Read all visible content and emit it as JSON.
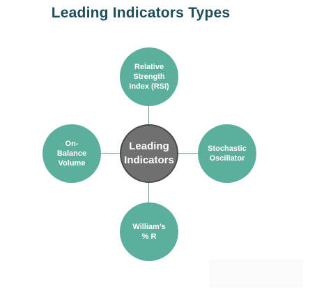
{
  "title": "Leading Indicators Types",
  "center": {
    "label": "Leading\nIndicators"
  },
  "nodes": {
    "top": "Relative\nStrength\nIndex (RSI)",
    "right": "Stochastic\nOscillator",
    "bottom": "William’s\n% R",
    "left": "On-\nBalance\nVolume"
  },
  "colors": {
    "title": "#1f4e5a",
    "outer_node": "#5daf9d",
    "center_node": "#707070",
    "center_border": "#4a4a4a",
    "connector": "#6aa69b"
  }
}
